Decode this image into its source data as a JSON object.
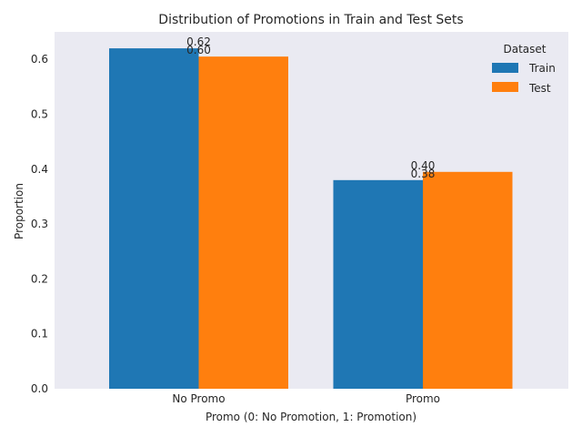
{
  "chart_data": {
    "type": "bar",
    "title": "Distribution of Promotions in Train and Test Sets",
    "xlabel": "Promo (0: No Promotion, 1: Promotion)",
    "ylabel": "Proportion",
    "categories": [
      "No Promo",
      "Promo"
    ],
    "series": [
      {
        "name": "Train",
        "values": [
          0.62,
          0.38
        ],
        "labels": [
          "0.62",
          "0.38"
        ],
        "color": "#1f77b4"
      },
      {
        "name": "Test",
        "values": [
          0.605,
          0.395
        ],
        "labels": [
          "0.60",
          "0.40"
        ],
        "color": "#ff7f0e"
      }
    ],
    "ylim": [
      0,
      0.65
    ],
    "yticks": [
      "0.0",
      "0.1",
      "0.2",
      "0.3",
      "0.4",
      "0.5",
      "0.6"
    ],
    "grid": false,
    "legend": {
      "title": "Dataset",
      "placement": "top-right"
    },
    "background": "#eaeaf2"
  }
}
